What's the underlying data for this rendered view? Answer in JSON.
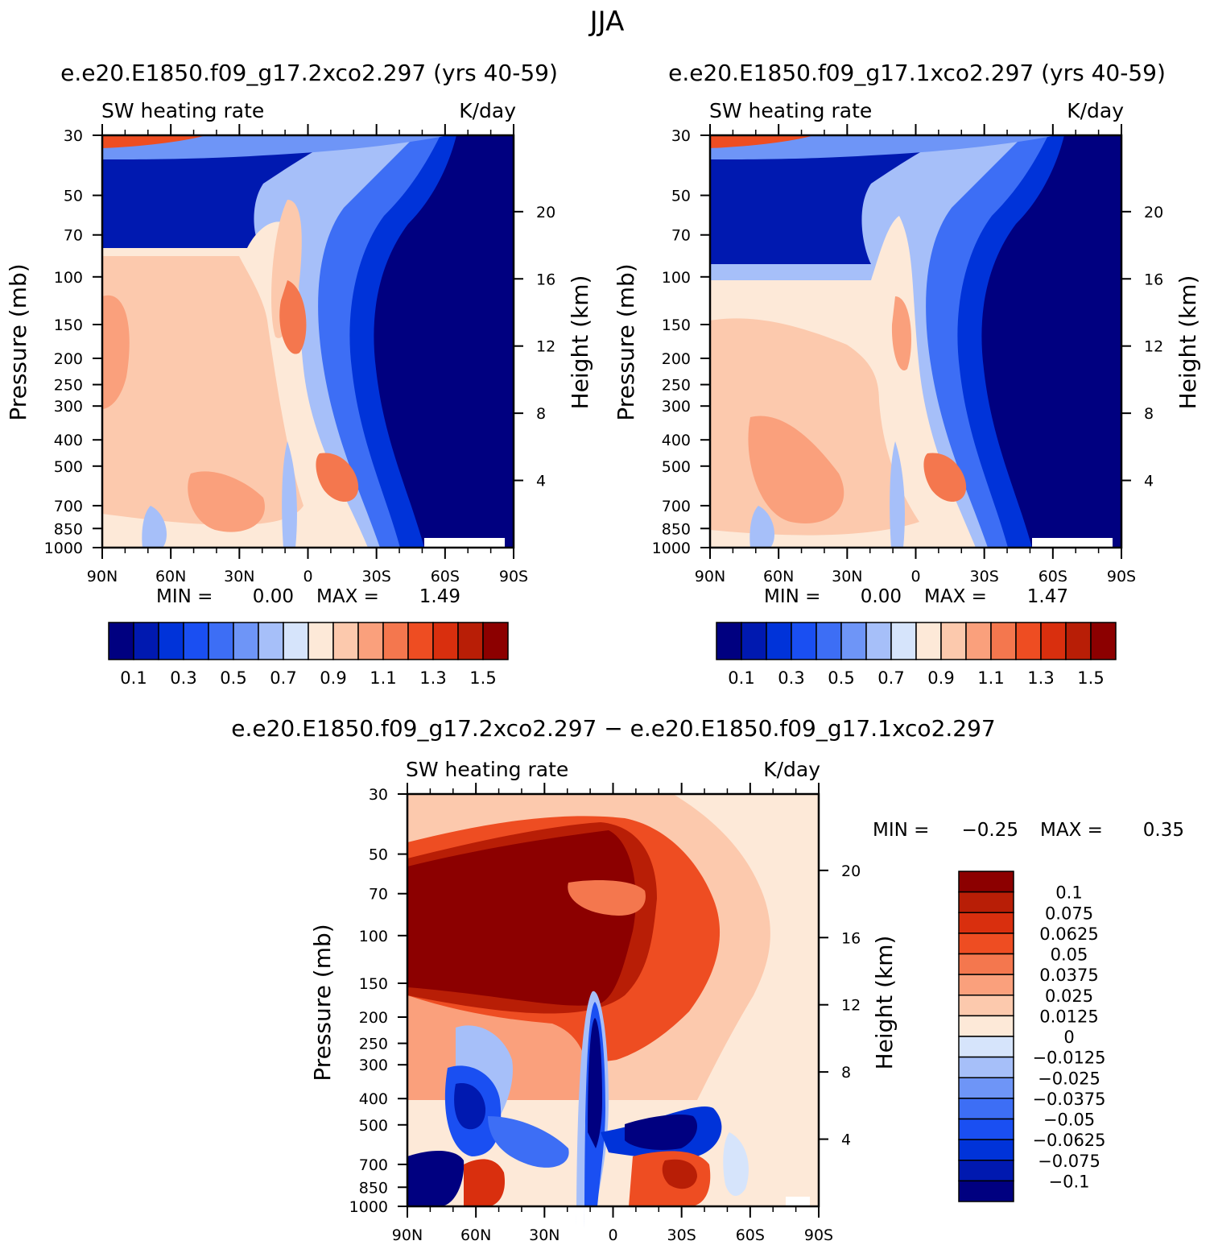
{
  "page_title": "JJA",
  "chart_data": [
    {
      "type": "heatmap",
      "title": "e.e20.E1850.f09_g17.2xco2.297 (yrs 40-59)",
      "left_label": "SW heating rate",
      "right_label": "K/day",
      "ylabel": "Pressure (mb)",
      "ylabel_right": "Height (km)",
      "pressure_ticks": [
        "30",
        "50",
        "70",
        "100",
        "150",
        "200",
        "250",
        "300",
        "400",
        "500",
        "700",
        "850",
        "1000"
      ],
      "height_ticks": [
        "20",
        "16",
        "12",
        "8",
        "4"
      ],
      "lat_ticks": [
        "90N",
        "60N",
        "30N",
        "0",
        "30S",
        "60S",
        "90S"
      ],
      "min_label": "MIN =",
      "min_value": "0.00",
      "max_label": "MAX =",
      "max_value": "1.49",
      "colorbar_labels": [
        "0.1",
        "0.3",
        "0.5",
        "0.7",
        "0.9",
        "1.1",
        "1.3",
        "1.5"
      ],
      "ylim": [
        1000,
        30
      ],
      "xlim": [
        90,
        -90
      ]
    },
    {
      "type": "heatmap",
      "title": "e.e20.E1850.f09_g17.1xco2.297 (yrs 40-59)",
      "left_label": "SW heating rate",
      "right_label": "K/day",
      "ylabel": "Pressure (mb)",
      "ylabel_right": "Height (km)",
      "pressure_ticks": [
        "30",
        "50",
        "70",
        "100",
        "150",
        "200",
        "250",
        "300",
        "400",
        "500",
        "700",
        "850",
        "1000"
      ],
      "height_ticks": [
        "20",
        "16",
        "12",
        "8",
        "4"
      ],
      "lat_ticks": [
        "90N",
        "60N",
        "30N",
        "0",
        "30S",
        "60S",
        "90S"
      ],
      "min_label": "MIN =",
      "min_value": "0.00",
      "max_label": "MAX =",
      "max_value": "1.47",
      "colorbar_labels": [
        "0.1",
        "0.3",
        "0.5",
        "0.7",
        "0.9",
        "1.1",
        "1.3",
        "1.5"
      ],
      "ylim": [
        1000,
        30
      ],
      "xlim": [
        90,
        -90
      ]
    },
    {
      "type": "heatmap",
      "title": "e.e20.E1850.f09_g17.2xco2.297 − e.e20.E1850.f09_g17.1xco2.297",
      "left_label": "SW heating rate",
      "right_label": "K/day",
      "ylabel": "Pressure (mb)",
      "ylabel_right": "Height (km)",
      "pressure_ticks": [
        "30",
        "50",
        "70",
        "100",
        "150",
        "200",
        "250",
        "300",
        "400",
        "500",
        "700",
        "850",
        "1000"
      ],
      "height_ticks": [
        "20",
        "16",
        "12",
        "8",
        "4"
      ],
      "lat_ticks": [
        "90N",
        "60N",
        "30N",
        "0",
        "30S",
        "60S",
        "90S"
      ],
      "min_label": "MIN =",
      "min_value": "−0.25",
      "max_label": "MAX =",
      "max_value": "0.35",
      "colorbar_labels": [
        "0.1",
        "0.075",
        "0.0625",
        "0.05",
        "0.0375",
        "0.025",
        "0.0125",
        "0",
        "−0.0125",
        "−0.025",
        "−0.0375",
        "−0.05",
        "−0.0625",
        "−0.075",
        "−0.1"
      ],
      "ylim": [
        1000,
        30
      ],
      "xlim": [
        90,
        -90
      ]
    }
  ],
  "palettes": {
    "abs": [
      "#000080",
      "#0019b0",
      "#0033d9",
      "#1a4ff2",
      "#3d6ef5",
      "#6e95f7",
      "#a6bff9",
      "#d6e4fb",
      "#fde9d8",
      "#fcc9ad",
      "#faa07c",
      "#f4774e",
      "#ee4d22",
      "#d92f0e",
      "#b81e06",
      "#8c0000"
    ],
    "diff": [
      "#8c0000",
      "#b81e06",
      "#d92f0e",
      "#ee4d22",
      "#f4774e",
      "#faa07c",
      "#fcc9ad",
      "#fde9d8",
      "#d6e4fb",
      "#a6bff9",
      "#6e95f7",
      "#3d6ef5",
      "#1a4ff2",
      "#0033d9",
      "#0019b0",
      "#000080"
    ]
  }
}
